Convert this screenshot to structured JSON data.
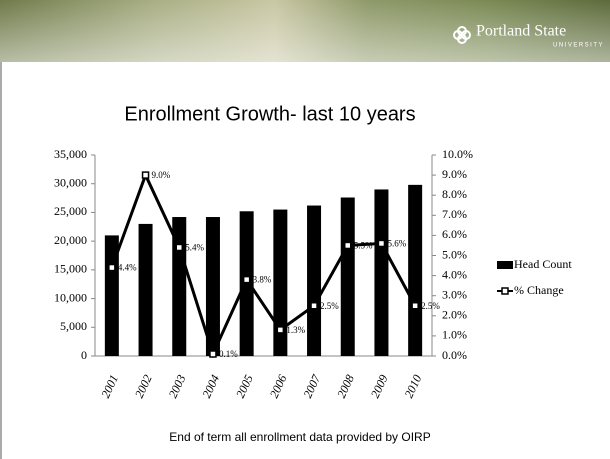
{
  "header": {
    "brand": "Portland State",
    "sub": "UNIVERSITY"
  },
  "footnote": "End of term all enrollment data provided by OIRP",
  "chart_data": {
    "type": "bar-line",
    "title": "Enrollment Growth- last 10 years",
    "categories": [
      "2001",
      "2002",
      "2003",
      "2004",
      "2005",
      "2006",
      "2007",
      "2008",
      "2009",
      "2010"
    ],
    "series": [
      {
        "name": "Head Count",
        "color": "#000000",
        "values": [
          21000,
          23000,
          24200,
          24200,
          25200,
          25500,
          26200,
          27600,
          29000,
          29800
        ]
      },
      {
        "name": "% Change",
        "color": "#000000",
        "axis": "y2",
        "values": [
          4.4,
          9.0,
          5.4,
          0.1,
          3.8,
          1.3,
          2.5,
          5.5,
          5.6,
          2.5
        ],
        "value_labels": [
          "4.4%",
          "9.0%",
          "5.4%",
          "0.1%",
          "3.8%",
          "1.3%",
          "2.5%",
          "5.5%",
          "5.6%",
          "2.5%"
        ]
      }
    ],
    "ylim": [
      0,
      35000
    ],
    "yticks": [
      0,
      {
        "value": 5000,
        "label": "5,000"
      },
      {
        "value": 10000,
        "label": "10,000"
      },
      {
        "value": 15000,
        "label": "15,000"
      },
      {
        "value": 20000,
        "label": "20,000"
      },
      {
        "value": 25000,
        "label": "25,000"
      },
      {
        "value": 30000,
        "label": "30,000"
      },
      {
        "value": 35000,
        "label": "35,000"
      }
    ],
    "y2lim": [
      0,
      10
    ],
    "y2ticks": [
      {
        "value": 0,
        "label": "0.0%"
      },
      {
        "value": 1,
        "label": "1.0%"
      },
      {
        "value": 2,
        "label": "2.0%"
      },
      {
        "value": 3,
        "label": "3.0%"
      },
      {
        "value": 4,
        "label": "4.0%"
      },
      {
        "value": 5,
        "label": "5.0%"
      },
      {
        "value": 6,
        "label": "6.0%"
      },
      {
        "value": 7,
        "label": "7.0%"
      },
      {
        "value": 8,
        "label": "8.0%"
      },
      {
        "value": 9,
        "label": "9.0%"
      },
      {
        "value": 10,
        "label": "10.0%"
      }
    ],
    "legend": "right"
  }
}
